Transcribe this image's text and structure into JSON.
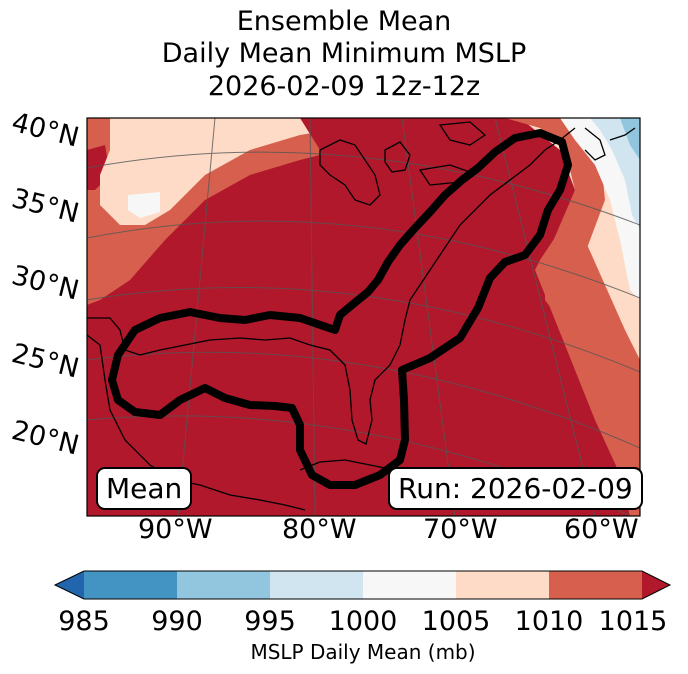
{
  "title": {
    "line1": "Ensemble Mean",
    "line2": "Daily Mean Minimum MSLP",
    "line3": "2026-02-09 12z-12z"
  },
  "map": {
    "lat_labels": [
      "40°N",
      "35°N",
      "30°N",
      "25°N",
      "20°N"
    ],
    "lon_labels": [
      "90°W",
      "80°W",
      "70°W",
      "60°W"
    ],
    "mean_label": "Mean",
    "run_label": "Run: 2026-02-09"
  },
  "colorbar": {
    "ticks": [
      "985",
      "990",
      "995",
      "1000",
      "1005",
      "1010",
      "1015"
    ],
    "label": "MSLP Daily Mean (mb)",
    "colors": [
      "#2166ac",
      "#4393c3",
      "#92c5de",
      "#d1e5f0",
      "#f7f7f7",
      "#fddbc7",
      "#d6604d",
      "#b2182b"
    ]
  }
}
